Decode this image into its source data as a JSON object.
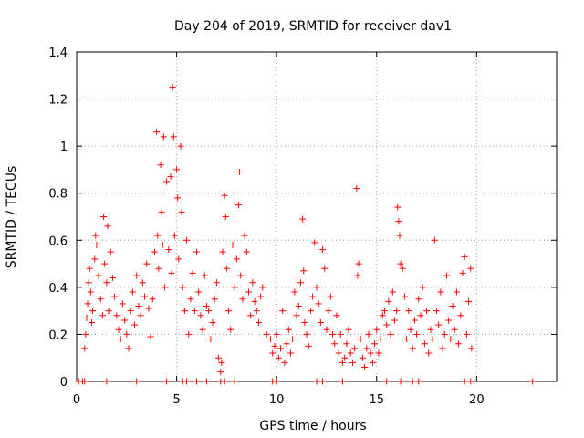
{
  "chart_data": {
    "type": "scatter",
    "title": "Day 204 of 2019, SRMTID for receiver dav1",
    "xlabel": "GPS time / hours",
    "ylabel": "SRMTID / TECUs",
    "xlim": [
      0,
      24
    ],
    "ylim": [
      0,
      1.4
    ],
    "xticks": [
      0,
      5,
      10,
      15,
      20
    ],
    "xtick_labels": [
      "0",
      "5",
      "10",
      "15",
      "20"
    ],
    "yticks": [
      0,
      0.2,
      0.4,
      0.6,
      0.8,
      1.0,
      1.2,
      1.4
    ],
    "ytick_labels": [
      "0",
      "0.2",
      "0.4",
      "0.6",
      "0.8",
      "1",
      "1.2",
      "1.4"
    ],
    "grid": true,
    "marker": "+",
    "color": "#ff0000",
    "series": [
      {
        "name": "SRMTID",
        "points": [
          [
            0.4,
            0.14
          ],
          [
            0.45,
            0.2
          ],
          [
            0.5,
            0.27
          ],
          [
            0.55,
            0.33
          ],
          [
            0.6,
            0.42
          ],
          [
            0.65,
            0.48
          ],
          [
            0.7,
            0.38
          ],
          [
            0.75,
            0.25
          ],
          [
            0.8,
            0.3
          ],
          [
            0.9,
            0.52
          ],
          [
            0.95,
            0.62
          ],
          [
            1.0,
            0.58
          ],
          [
            1.1,
            0.45
          ],
          [
            1.2,
            0.35
          ],
          [
            1.3,
            0.28
          ],
          [
            1.35,
            0.7
          ],
          [
            1.4,
            0.5
          ],
          [
            1.5,
            0.42
          ],
          [
            1.55,
            0.66
          ],
          [
            1.6,
            0.3
          ],
          [
            1.7,
            0.55
          ],
          [
            1.8,
            0.44
          ],
          [
            1.9,
            0.36
          ],
          [
            2.0,
            0.28
          ],
          [
            2.1,
            0.22
          ],
          [
            2.2,
            0.18
          ],
          [
            2.3,
            0.33
          ],
          [
            2.4,
            0.26
          ],
          [
            2.5,
            0.2
          ],
          [
            2.6,
            0.14
          ],
          [
            2.7,
            0.3
          ],
          [
            2.8,
            0.38
          ],
          [
            2.9,
            0.24
          ],
          [
            3.0,
            0.45
          ],
          [
            3.1,
            0.32
          ],
          [
            3.2,
            0.28
          ],
          [
            3.3,
            0.42
          ],
          [
            3.4,
            0.36
          ],
          [
            3.5,
            0.5
          ],
          [
            3.6,
            0.31
          ],
          [
            3.7,
            0.19
          ],
          [
            3.8,
            0.35
          ],
          [
            3.9,
            0.55
          ],
          [
            4.0,
            1.06
          ],
          [
            4.05,
            0.62
          ],
          [
            4.1,
            0.48
          ],
          [
            4.2,
            0.92
          ],
          [
            4.25,
            0.72
          ],
          [
            4.3,
            0.58
          ],
          [
            4.35,
            1.04
          ],
          [
            4.4,
            0.4
          ],
          [
            4.5,
            0.85
          ],
          [
            4.6,
            0.56
          ],
          [
            4.7,
            0.87
          ],
          [
            4.75,
            0.46
          ],
          [
            4.8,
            1.25
          ],
          [
            4.85,
            1.04
          ],
          [
            4.9,
            0.62
          ],
          [
            5.0,
            0.9
          ],
          [
            5.05,
            0.78
          ],
          [
            5.1,
            0.52
          ],
          [
            5.2,
            1.0
          ],
          [
            5.25,
            0.72
          ],
          [
            5.3,
            0.4
          ],
          [
            5.4,
            0.3
          ],
          [
            5.5,
            0.6
          ],
          [
            5.6,
            0.2
          ],
          [
            5.7,
            0.35
          ],
          [
            5.8,
            0.46
          ],
          [
            5.9,
            0.3
          ],
          [
            6.0,
            0.55
          ],
          [
            6.1,
            0.38
          ],
          [
            6.2,
            0.28
          ],
          [
            6.3,
            0.22
          ],
          [
            6.4,
            0.45
          ],
          [
            6.5,
            0.32
          ],
          [
            6.6,
            0.3
          ],
          [
            6.7,
            0.18
          ],
          [
            6.8,
            0.25
          ],
          [
            6.9,
            0.35
          ],
          [
            7.0,
            0.42
          ],
          [
            7.1,
            0.1
          ],
          [
            7.2,
            0.04
          ],
          [
            7.25,
            0.08
          ],
          [
            7.3,
            0.55
          ],
          [
            7.4,
            0.79
          ],
          [
            7.45,
            0.7
          ],
          [
            7.5,
            0.48
          ],
          [
            7.6,
            0.3
          ],
          [
            7.7,
            0.22
          ],
          [
            7.8,
            0.58
          ],
          [
            7.9,
            0.4
          ],
          [
            8.0,
            0.52
          ],
          [
            8.1,
            0.75
          ],
          [
            8.15,
            0.89
          ],
          [
            8.2,
            0.45
          ],
          [
            8.3,
            0.35
          ],
          [
            8.4,
            0.62
          ],
          [
            8.5,
            0.55
          ],
          [
            8.6,
            0.38
          ],
          [
            8.7,
            0.28
          ],
          [
            8.8,
            0.42
          ],
          [
            8.9,
            0.34
          ],
          [
            9.0,
            0.3
          ],
          [
            9.1,
            0.25
          ],
          [
            9.2,
            0.36
          ],
          [
            9.3,
            0.4
          ],
          [
            9.5,
            0.2
          ],
          [
            9.7,
            0.18
          ],
          [
            9.8,
            0.12
          ],
          [
            9.9,
            0.15
          ],
          [
            10.0,
            0.2
          ],
          [
            10.1,
            0.1
          ],
          [
            10.2,
            0.14
          ],
          [
            10.3,
            0.3
          ],
          [
            10.4,
            0.08
          ],
          [
            10.5,
            0.16
          ],
          [
            10.6,
            0.22
          ],
          [
            10.7,
            0.12
          ],
          [
            10.8,
            0.18
          ],
          [
            10.9,
            0.38
          ],
          [
            11.0,
            0.28
          ],
          [
            11.1,
            0.32
          ],
          [
            11.2,
            0.42
          ],
          [
            11.3,
            0.69
          ],
          [
            11.35,
            0.47
          ],
          [
            11.4,
            0.25
          ],
          [
            11.5,
            0.2
          ],
          [
            11.6,
            0.15
          ],
          [
            11.7,
            0.3
          ],
          [
            11.8,
            0.36
          ],
          [
            11.9,
            0.59
          ],
          [
            12.0,
            0.4
          ],
          [
            12.1,
            0.33
          ],
          [
            12.2,
            0.25
          ],
          [
            12.3,
            0.56
          ],
          [
            12.4,
            0.48
          ],
          [
            12.5,
            0.22
          ],
          [
            12.6,
            0.3
          ],
          [
            12.7,
            0.36
          ],
          [
            12.8,
            0.2
          ],
          [
            12.9,
            0.16
          ],
          [
            13.0,
            0.28
          ],
          [
            13.1,
            0.12
          ],
          [
            13.2,
            0.2
          ],
          [
            13.3,
            0.08
          ],
          [
            13.4,
            0.1
          ],
          [
            13.5,
            0.16
          ],
          [
            13.6,
            0.22
          ],
          [
            13.7,
            0.12
          ],
          [
            13.8,
            0.08
          ],
          [
            13.9,
            0.14
          ],
          [
            14.0,
            0.82
          ],
          [
            14.05,
            0.45
          ],
          [
            14.1,
            0.5
          ],
          [
            14.2,
            0.18
          ],
          [
            14.3,
            0.1
          ],
          [
            14.4,
            0.06
          ],
          [
            14.5,
            0.14
          ],
          [
            14.6,
            0.2
          ],
          [
            14.7,
            0.12
          ],
          [
            14.8,
            0.08
          ],
          [
            14.9,
            0.16
          ],
          [
            15.0,
            0.22
          ],
          [
            15.1,
            0.12
          ],
          [
            15.2,
            0.18
          ],
          [
            15.3,
            0.28
          ],
          [
            15.4,
            0.3
          ],
          [
            15.5,
            0.24
          ],
          [
            15.6,
            0.34
          ],
          [
            15.7,
            0.2
          ],
          [
            15.8,
            0.38
          ],
          [
            15.9,
            0.26
          ],
          [
            16.0,
            0.3
          ],
          [
            16.05,
            0.74
          ],
          [
            16.1,
            0.68
          ],
          [
            16.15,
            0.62
          ],
          [
            16.2,
            0.5
          ],
          [
            16.3,
            0.48
          ],
          [
            16.4,
            0.36
          ],
          [
            16.5,
            0.18
          ],
          [
            16.6,
            0.3
          ],
          [
            16.7,
            0.22
          ],
          [
            16.8,
            0.14
          ],
          [
            16.9,
            0.26
          ],
          [
            17.0,
            0.2
          ],
          [
            17.1,
            0.35
          ],
          [
            17.2,
            0.28
          ],
          [
            17.3,
            0.4
          ],
          [
            17.4,
            0.16
          ],
          [
            17.5,
            0.3
          ],
          [
            17.6,
            0.12
          ],
          [
            17.7,
            0.22
          ],
          [
            17.8,
            0.18
          ],
          [
            17.9,
            0.6
          ],
          [
            18.0,
            0.3
          ],
          [
            18.1,
            0.24
          ],
          [
            18.2,
            0.38
          ],
          [
            18.3,
            0.14
          ],
          [
            18.4,
            0.2
          ],
          [
            18.5,
            0.45
          ],
          [
            18.6,
            0.26
          ],
          [
            18.7,
            0.18
          ],
          [
            18.8,
            0.32
          ],
          [
            18.9,
            0.22
          ],
          [
            19.0,
            0.38
          ],
          [
            19.1,
            0.16
          ],
          [
            19.2,
            0.28
          ],
          [
            19.3,
            0.46
          ],
          [
            19.4,
            0.53
          ],
          [
            19.5,
            0.2
          ],
          [
            19.6,
            0.34
          ],
          [
            19.7,
            0.48
          ],
          [
            19.75,
            0.14
          ]
        ]
      }
    ],
    "zero_points_x": [
      0.1,
      0.3,
      0.4,
      1.5,
      3.0,
      4.5,
      5.3,
      5.5,
      6.0,
      6.5,
      7.2,
      7.4,
      7.9,
      9.8,
      10.0,
      12.0,
      12.3,
      13.3,
      15.5,
      16.2,
      16.8,
      17.1,
      19.4,
      19.7,
      22.8
    ]
  }
}
